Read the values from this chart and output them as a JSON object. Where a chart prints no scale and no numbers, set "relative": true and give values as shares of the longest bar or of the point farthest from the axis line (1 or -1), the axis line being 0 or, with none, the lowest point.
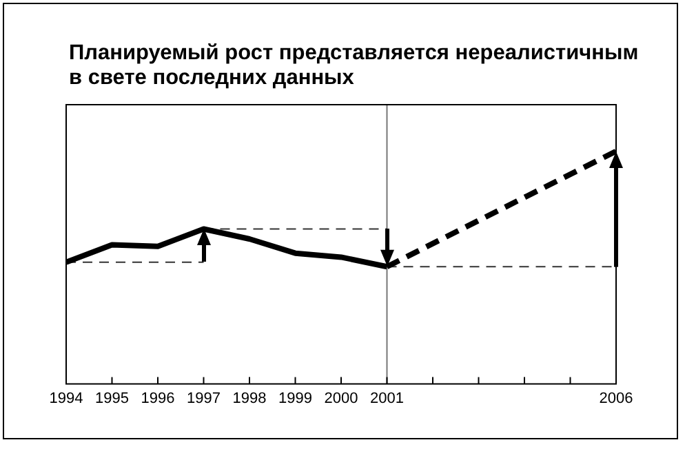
{
  "chart_data": {
    "type": "line",
    "title": "Планируемый рост представляется нереалистичным в свете последних данных",
    "relative": true,
    "xlim": [
      1994,
      2006
    ],
    "xticks": [
      1994,
      1995,
      1996,
      1997,
      1998,
      1999,
      2000,
      2001,
      {
        "value": 2002,
        "label": null
      },
      {
        "value": 2003,
        "label": null
      },
      {
        "value": 2004,
        "label": null
      },
      {
        "value": 2005,
        "label": null
      },
      2006
    ],
    "series": [
      {
        "color": "#000000",
        "x": [
          1994,
          1995,
          1996,
          1997,
          1998,
          1999,
          2000,
          2001
        ],
        "values": [
          0.523,
          0.598,
          0.591,
          0.666,
          0.623,
          0.562,
          0.545,
          0.504
        ],
        "line_style": "solid"
      },
      {
        "color": "#000000",
        "x": [
          2001,
          2006
        ],
        "values": [
          0.504,
          1
        ],
        "line_style": "dashed"
      },
      {
        "color": "#333333",
        "x": [
          1994,
          1997
        ],
        "values": [
          0.523,
          0.523
        ],
        "line_style": "dashed"
      },
      {
        "color": "#333333",
        "x": [
          1997,
          2001
        ],
        "values": [
          0.666,
          0.666
        ],
        "line_style": "dashed"
      },
      {
        "color": "#333333",
        "x": [
          2001,
          2006
        ],
        "values": [
          0.504,
          0.504
        ],
        "line_style": "dashed"
      }
    ],
    "ref_lines": [
      {
        "axis": "x",
        "value": 2001,
        "color": "#777777"
      }
    ],
    "grid": false,
    "legend": false,
    "marker": "none"
  }
}
